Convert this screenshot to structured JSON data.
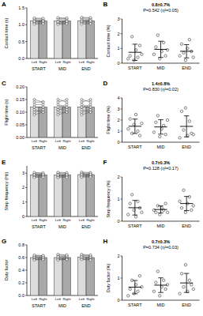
{
  "chart_data": [
    {
      "type": "bar",
      "panel_label": "A",
      "y_label": "Contact time (s)",
      "categories": [
        "Left",
        "Right",
        "Left",
        "Right",
        "Left",
        "Right"
      ],
      "groups": [
        "START",
        "MID",
        "END"
      ],
      "values": [
        1.11,
        1.12,
        1.11,
        1.11,
        1.12,
        1.12
      ],
      "colors": [
        "#dcdcdc",
        "#a9a9a9",
        "#dcdcdc",
        "#a9a9a9",
        "#dcdcdc",
        "#a9a9a9"
      ],
      "points": [
        [
          1.12,
          1.05,
          1.18,
          1.08,
          1.15,
          1.02,
          1.1,
          1.2
        ],
        [
          1.13,
          1.06,
          1.17,
          1.09,
          1.14,
          1.03,
          1.11,
          1.19
        ],
        [
          1.11,
          1.04,
          1.19,
          1.07,
          1.16,
          1.01,
          1.09,
          1.21
        ],
        [
          1.12,
          1.05,
          1.18,
          1.08,
          1.15,
          1.03,
          1.1,
          1.2
        ],
        [
          1.13,
          1.06,
          1.2,
          1.08,
          1.17,
          1.02,
          1.11,
          1.22
        ],
        [
          1.14,
          1.05,
          1.19,
          1.09,
          1.16,
          1.03,
          1.12,
          1.21
        ]
      ],
      "ylim": [
        0,
        1.5
      ],
      "yticks": [
        {
          "value": 0,
          "label": "0.0"
        },
        0.5,
        {
          "value": 1,
          "label": "1.0"
        },
        1.5
      ]
    },
    {
      "type": "scatter",
      "panel_label": "B",
      "y_label": "Contact time (%)",
      "title": "0.8±0.7%",
      "subtitle": "P=0.542 (η²=0.05)",
      "categories": [
        "START",
        "MID",
        "END"
      ],
      "values": [
        0.74,
        0.94,
        0.81
      ],
      "errors": [
        0.55,
        0.55,
        0.45
      ],
      "points": [
        [
          0.3,
          0.5,
          1.8,
          0.2,
          0.9,
          0.4,
          1.2,
          0.6
        ],
        [
          0.6,
          1.1,
          1.9,
          0.3,
          0.8,
          1.4,
          0.5,
          0.9
        ],
        [
          0.5,
          1.3,
          0.7,
          0.2,
          1.0,
          1.6,
          0.8,
          0.4
        ]
      ],
      "ylim": [
        0,
        3
      ],
      "yticks": [
        0,
        1,
        2,
        3
      ]
    },
    {
      "type": "bar",
      "panel_label": "C",
      "y_label": "Flight time (s)",
      "categories": [
        "Left",
        "Right",
        "Left",
        "Right",
        "Left",
        "Right"
      ],
      "groups": [
        "START",
        "MID",
        "END"
      ],
      "values": [
        0.12,
        0.12,
        0.12,
        0.12,
        0.12,
        0.12
      ],
      "colors": [
        "#dcdcdc",
        "#a9a9a9",
        "#dcdcdc",
        "#a9a9a9",
        "#dcdcdc",
        "#a9a9a9"
      ],
      "points": [
        [
          0.12,
          0.1,
          0.14,
          0.11,
          0.13,
          0.09,
          0.12,
          0.15
        ],
        [
          0.12,
          0.11,
          0.14,
          0.1,
          0.13,
          0.1,
          0.12,
          0.14
        ],
        [
          0.11,
          0.1,
          0.15,
          0.11,
          0.13,
          0.09,
          0.12,
          0.14
        ],
        [
          0.12,
          0.1,
          0.14,
          0.11,
          0.12,
          0.1,
          0.13,
          0.15
        ],
        [
          0.12,
          0.11,
          0.14,
          0.1,
          0.13,
          0.09,
          0.12,
          0.15
        ],
        [
          0.13,
          0.1,
          0.15,
          0.11,
          0.12,
          0.1,
          0.12,
          0.14
        ]
      ],
      "ylim": [
        0,
        0.2
      ],
      "yticks": [
        {
          "value": 0,
          "label": "0.00"
        },
        0.05,
        {
          "value": 0.1,
          "label": "0.10"
        },
        0.15,
        {
          "value": 0.2,
          "label": "0.20"
        }
      ]
    },
    {
      "type": "scatter",
      "panel_label": "D",
      "y_label": "Flight time (%)",
      "title": "1.4±0.8%",
      "subtitle": "P=0.830 (η²=0.02)",
      "categories": [
        "START",
        "MID",
        "END"
      ],
      "values": [
        1.44,
        1.38,
        1.43
      ],
      "errors": [
        0.65,
        0.65,
        0.95
      ],
      "points": [
        [
          1.2,
          2.1,
          0.8,
          1.6,
          2.5,
          1.0,
          0.6,
          1.7
        ],
        [
          0.9,
          1.8,
          2.4,
          0.5,
          1.2,
          1.5,
          0.7,
          2.0
        ],
        [
          0.4,
          2.8,
          1.1,
          3.1,
          0.6,
          1.9,
          0.8,
          0.7
        ]
      ],
      "ylim": [
        0,
        4
      ],
      "yticks": [
        0,
        1,
        2,
        3,
        4
      ]
    },
    {
      "type": "bar",
      "panel_label": "E",
      "y_label": "Step frequency (Hz)",
      "categories": [
        "Left",
        "Right",
        "Left",
        "Right",
        "Left",
        "Right"
      ],
      "groups": [
        "START",
        "MID",
        "END"
      ],
      "values": [
        2.88,
        2.88,
        2.87,
        2.88,
        2.9,
        2.9
      ],
      "colors": [
        "#dcdcdc",
        "#a9a9a9",
        "#dcdcdc",
        "#a9a9a9",
        "#dcdcdc",
        "#a9a9a9"
      ],
      "points": [
        [
          2.85,
          2.95,
          2.75,
          3.0,
          2.8,
          3.05,
          2.9,
          2.7
        ],
        [
          2.88,
          2.93,
          2.78,
          2.98,
          2.82,
          3.02,
          2.92,
          2.72
        ],
        [
          2.83,
          2.96,
          2.74,
          3.01,
          2.79,
          3.06,
          2.88,
          2.69
        ],
        [
          2.86,
          2.94,
          2.77,
          2.99,
          2.81,
          3.03,
          2.9,
          2.71
        ],
        [
          2.87,
          2.97,
          2.76,
          3.02,
          2.82,
          3.07,
          2.91,
          2.72
        ],
        [
          2.89,
          2.95,
          2.79,
          3.0,
          2.84,
          3.04,
          2.93,
          2.74
        ]
      ],
      "ylim": [
        0,
        3.5
      ],
      "yticks": [
        0,
        1,
        2,
        3
      ]
    },
    {
      "type": "scatter",
      "panel_label": "F",
      "y_label": "Step frequency (%)",
      "title": "0.7±0.3%",
      "subtitle": "P=0.128 (η²=0.17)",
      "categories": [
        "START",
        "MID",
        "END"
      ],
      "values": [
        0.61,
        0.53,
        0.8
      ],
      "errors": [
        0.33,
        0.16,
        0.32
      ],
      "points": [
        [
          0.3,
          0.8,
          1.2,
          0.5,
          0.2,
          0.9,
          0.6,
          0.4
        ],
        [
          0.5,
          0.4,
          0.7,
          0.3,
          0.6,
          0.5,
          0.8,
          0.4
        ],
        [
          0.9,
          0.6,
          1.4,
          0.4,
          0.8,
          1.1,
          0.5,
          0.7
        ]
      ],
      "ylim": [
        0,
        2
      ],
      "yticks": [
        0,
        1,
        2
      ]
    },
    {
      "type": "bar",
      "panel_label": "G",
      "y_label": "Duty factor",
      "categories": [
        "Left",
        "Right",
        "Left",
        "Right",
        "Left",
        "Right"
      ],
      "groups": [
        "START",
        "MID",
        "END"
      ],
      "values": [
        0.6,
        0.6,
        0.6,
        0.6,
        0.61,
        0.6
      ],
      "colors": [
        "#dcdcdc",
        "#a9a9a9",
        "#dcdcdc",
        "#a9a9a9",
        "#dcdcdc",
        "#a9a9a9"
      ],
      "points": [
        [
          0.6,
          0.58,
          0.63,
          0.57,
          0.62,
          0.56,
          0.61,
          0.64
        ],
        [
          0.61,
          0.58,
          0.62,
          0.57,
          0.63,
          0.57,
          0.6,
          0.63
        ],
        [
          0.59,
          0.57,
          0.64,
          0.58,
          0.62,
          0.56,
          0.61,
          0.65
        ],
        [
          0.6,
          0.58,
          0.63,
          0.57,
          0.61,
          0.57,
          0.62,
          0.64
        ],
        [
          0.61,
          0.58,
          0.64,
          0.58,
          0.63,
          0.57,
          0.61,
          0.65
        ],
        [
          0.6,
          0.59,
          0.63,
          0.57,
          0.62,
          0.56,
          0.61,
          0.64
        ]
      ],
      "ylim": [
        0,
        0.8
      ],
      "yticks": [
        {
          "value": 0,
          "label": "0.0"
        },
        0.2,
        0.4,
        0.6,
        0.8
      ]
    },
    {
      "type": "scatter",
      "panel_label": "H",
      "y_label": "Duty factor (%)",
      "title": "0.7±0.3%",
      "subtitle": "P=0.734 (η²=0.03)",
      "categories": [
        "START",
        "MID",
        "END"
      ],
      "values": [
        0.59,
        0.68,
        0.78
      ],
      "errors": [
        0.3,
        0.33,
        0.43
      ],
      "points": [
        [
          0.2,
          0.5,
          0.9,
          0.3,
          0.7,
          0.4,
          1.1,
          0.6
        ],
        [
          0.4,
          0.8,
          1.3,
          0.2,
          0.6,
          0.9,
          0.5,
          0.7
        ],
        [
          0.3,
          1.2,
          0.6,
          1.6,
          0.4,
          0.9,
          0.7,
          0.5
        ]
      ],
      "ylim": [
        0,
        2
      ],
      "yticks": [
        0,
        1,
        2
      ]
    }
  ]
}
